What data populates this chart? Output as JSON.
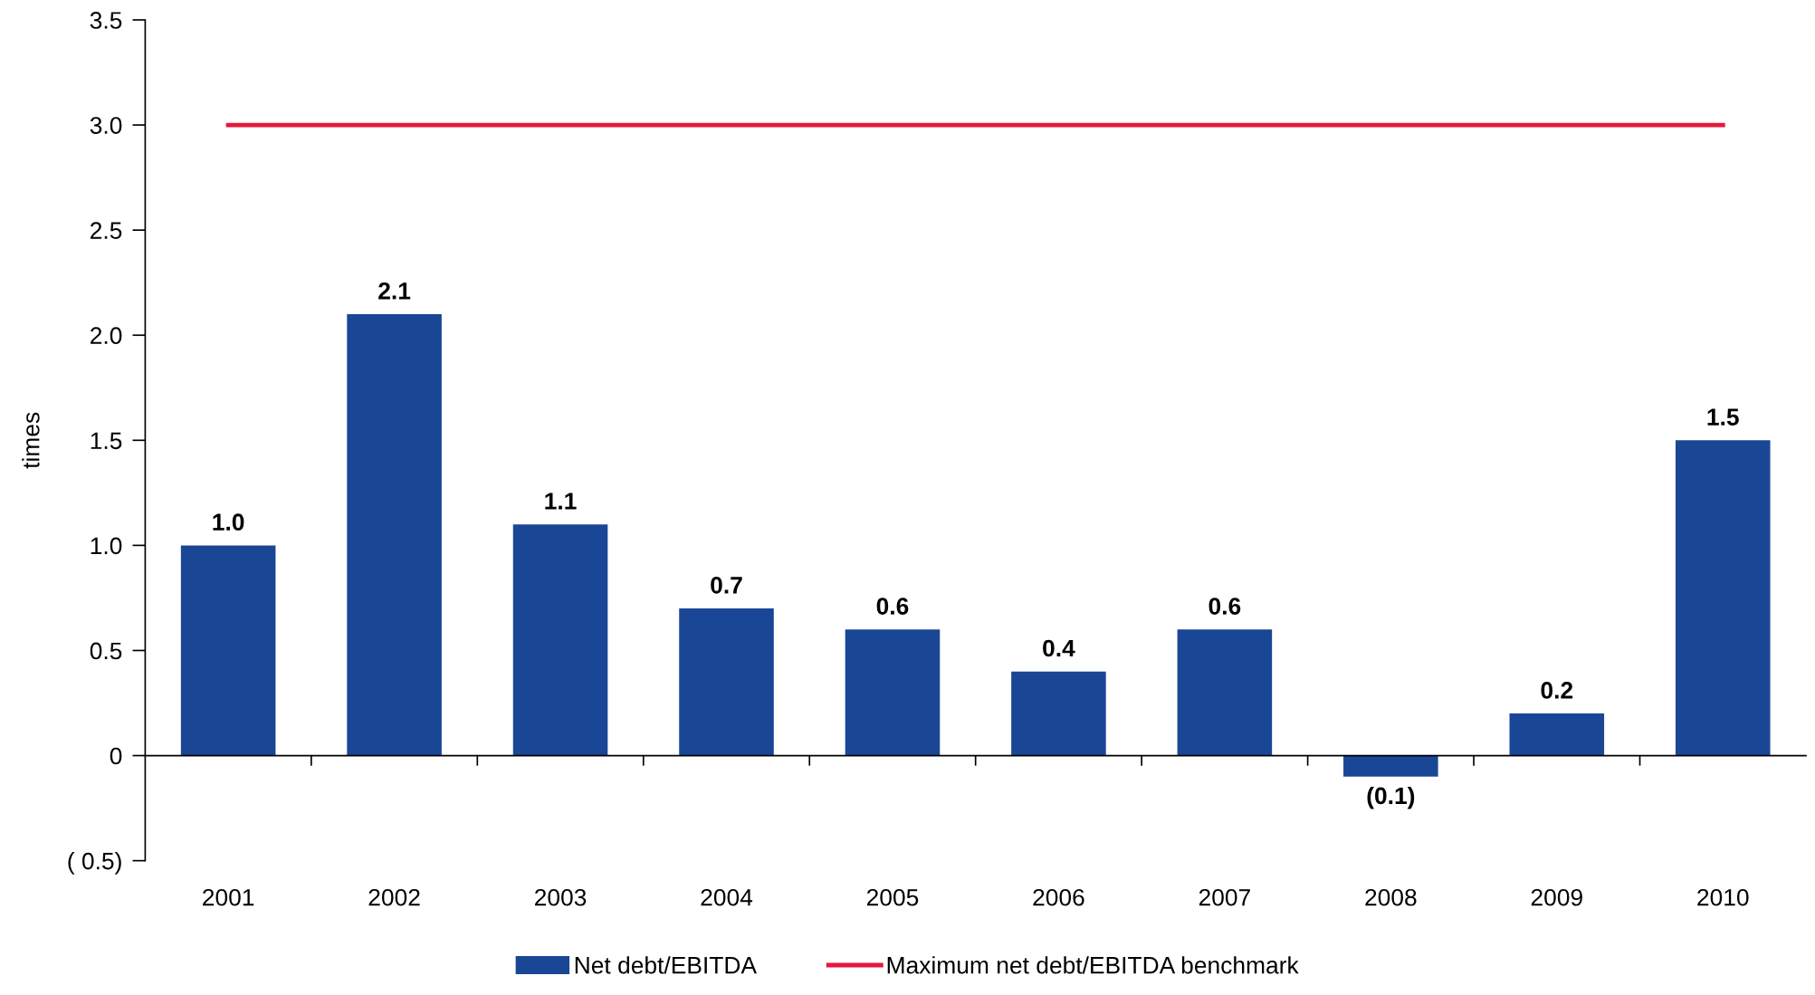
{
  "chart_data": {
    "type": "bar",
    "ylabel": "times",
    "categories": [
      "2001",
      "2002",
      "2003",
      "2004",
      "2005",
      "2006",
      "2007",
      "2008",
      "2009",
      "2010"
    ],
    "series": [
      {
        "name": "Net debt/EBITDA",
        "color": "#1a4696",
        "values": [
          1.0,
          2.1,
          1.1,
          0.7,
          0.6,
          0.4,
          0.6,
          -0.1,
          0.2,
          1.5
        ],
        "value_labels": [
          "1.0",
          "2.1",
          "1.1",
          "0.7",
          "0.6",
          "0.4",
          "0.6",
          "(0.1)",
          "0.2",
          "1.5"
        ]
      },
      {
        "name": "Maximum net debt/EBITDA benchmark",
        "type": "line",
        "color": "#e8173a",
        "values": [
          3.0,
          3.0,
          3.0,
          3.0,
          3.0,
          3.0,
          3.0,
          3.0,
          3.0,
          3.0
        ]
      }
    ],
    "ylim": [
      -0.5,
      3.5
    ],
    "yticks": [
      {
        "value": -0.5,
        "label": "( 0.5)"
      },
      0,
      0.5,
      {
        "value": 1.0,
        "label": "1.0"
      },
      1.5,
      {
        "value": 2.0,
        "label": "2.0"
      },
      2.5,
      {
        "value": 3.0,
        "label": "3.0"
      },
      3.5
    ],
    "legend": "bottom",
    "line_style": "solid",
    "marker": "none"
  }
}
